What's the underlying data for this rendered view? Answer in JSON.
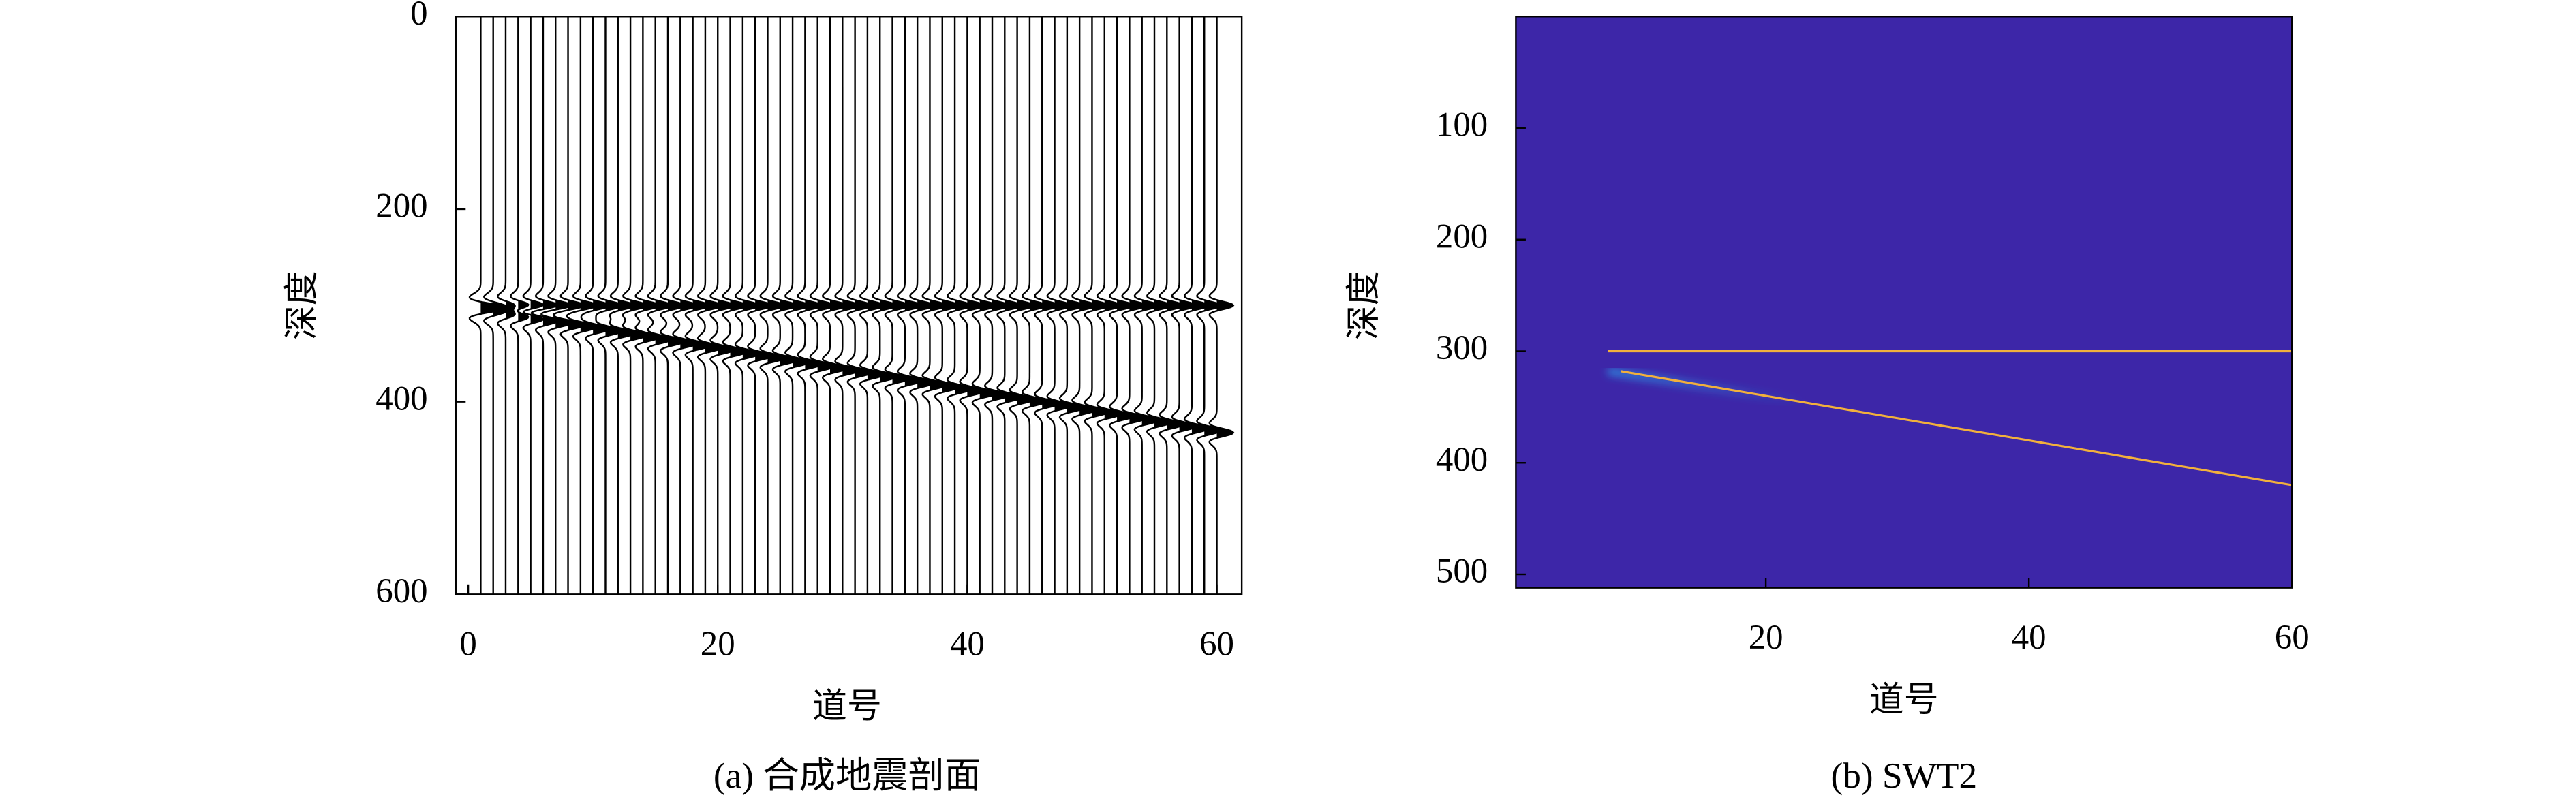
{
  "chart_data": [
    {
      "type": "wiggle",
      "caption": "(a) 合成地震剖面",
      "xlabel": "道号",
      "ylabel": "深度",
      "xlim": [
        -1,
        62
      ],
      "ylim": [
        0,
        600
      ],
      "y_inverted": true,
      "xticks": [
        0,
        20,
        40,
        60
      ],
      "yticks": [
        0,
        200,
        400,
        600
      ],
      "traces": [
        1,
        60
      ],
      "color": "#000000",
      "series": [
        {
          "x": [
            1,
            60
          ],
          "values": [
            300,
            300
          ]
        },
        {
          "x": [
            1,
            60
          ],
          "values": [
            305,
            432
          ]
        }
      ]
    },
    {
      "type": "heatmap",
      "caption": "(b) SWT2",
      "xlabel": "道号",
      "ylabel": "深度",
      "xlim": [
        1,
        60
      ],
      "ylim": [
        0,
        512
      ],
      "y_inverted": true,
      "xticks": [
        20,
        40,
        60
      ],
      "yticks": [
        100,
        200,
        300,
        400,
        500
      ],
      "background": "#3d26a8",
      "glow_color": "#2a9ce8",
      "series": [
        {
          "color": "#f2b03c",
          "x": [
            8,
            60
          ],
          "values": [
            300,
            300
          ]
        },
        {
          "color": "#f2b03c",
          "x": [
            9,
            60
          ],
          "values": [
            318,
            420
          ]
        }
      ]
    }
  ]
}
